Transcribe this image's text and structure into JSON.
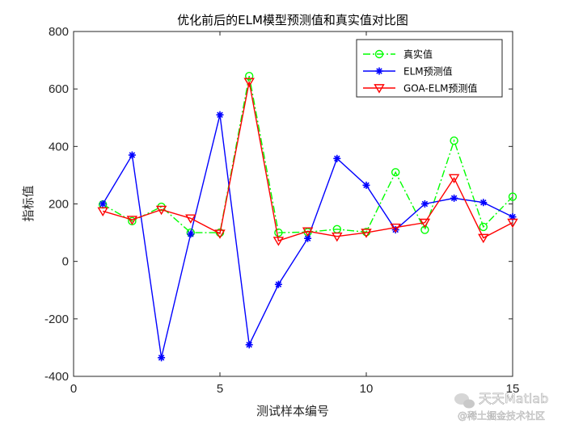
{
  "chart_data": {
    "type": "line",
    "title": "优化前后的ELM模型预测值和真实值对比图",
    "xlabel": "测试样本编号",
    "ylabel": "指标值",
    "xlim": [
      0,
      15
    ],
    "ylim": [
      -400,
      800
    ],
    "xticks": [
      0,
      5,
      10,
      15
    ],
    "yticks": [
      -400,
      -200,
      0,
      200,
      400,
      600,
      800
    ],
    "x": [
      1,
      2,
      3,
      4,
      5,
      6,
      7,
      8,
      9,
      10,
      11,
      12,
      13,
      14,
      15
    ],
    "grid": false,
    "legend_position": "top-right",
    "series": [
      {
        "name": "真实值",
        "color": "#00ff00",
        "marker": "circle",
        "line_style": "dash-dot",
        "values": [
          198,
          140,
          190,
          100,
          100,
          645,
          100,
          102,
          112,
          102,
          310,
          110,
          420,
          120,
          225
        ]
      },
      {
        "name": "ELM预测值",
        "color": "#0000ff",
        "marker": "asterisk",
        "line_style": "solid",
        "values": [
          200,
          370,
          -335,
          95,
          510,
          -290,
          -80,
          80,
          358,
          265,
          110,
          200,
          220,
          205,
          155
        ]
      },
      {
        "name": "GOA-ELM预测值",
        "color": "#ff0000",
        "marker": "triangle-down",
        "line_style": "solid",
        "values": [
          175,
          145,
          180,
          150,
          97,
          625,
          72,
          105,
          87,
          100,
          118,
          135,
          290,
          82,
          135
        ]
      }
    ]
  },
  "watermark": {
    "line1": "天天Matlab",
    "line2": "@稀土掘金技术社区"
  }
}
